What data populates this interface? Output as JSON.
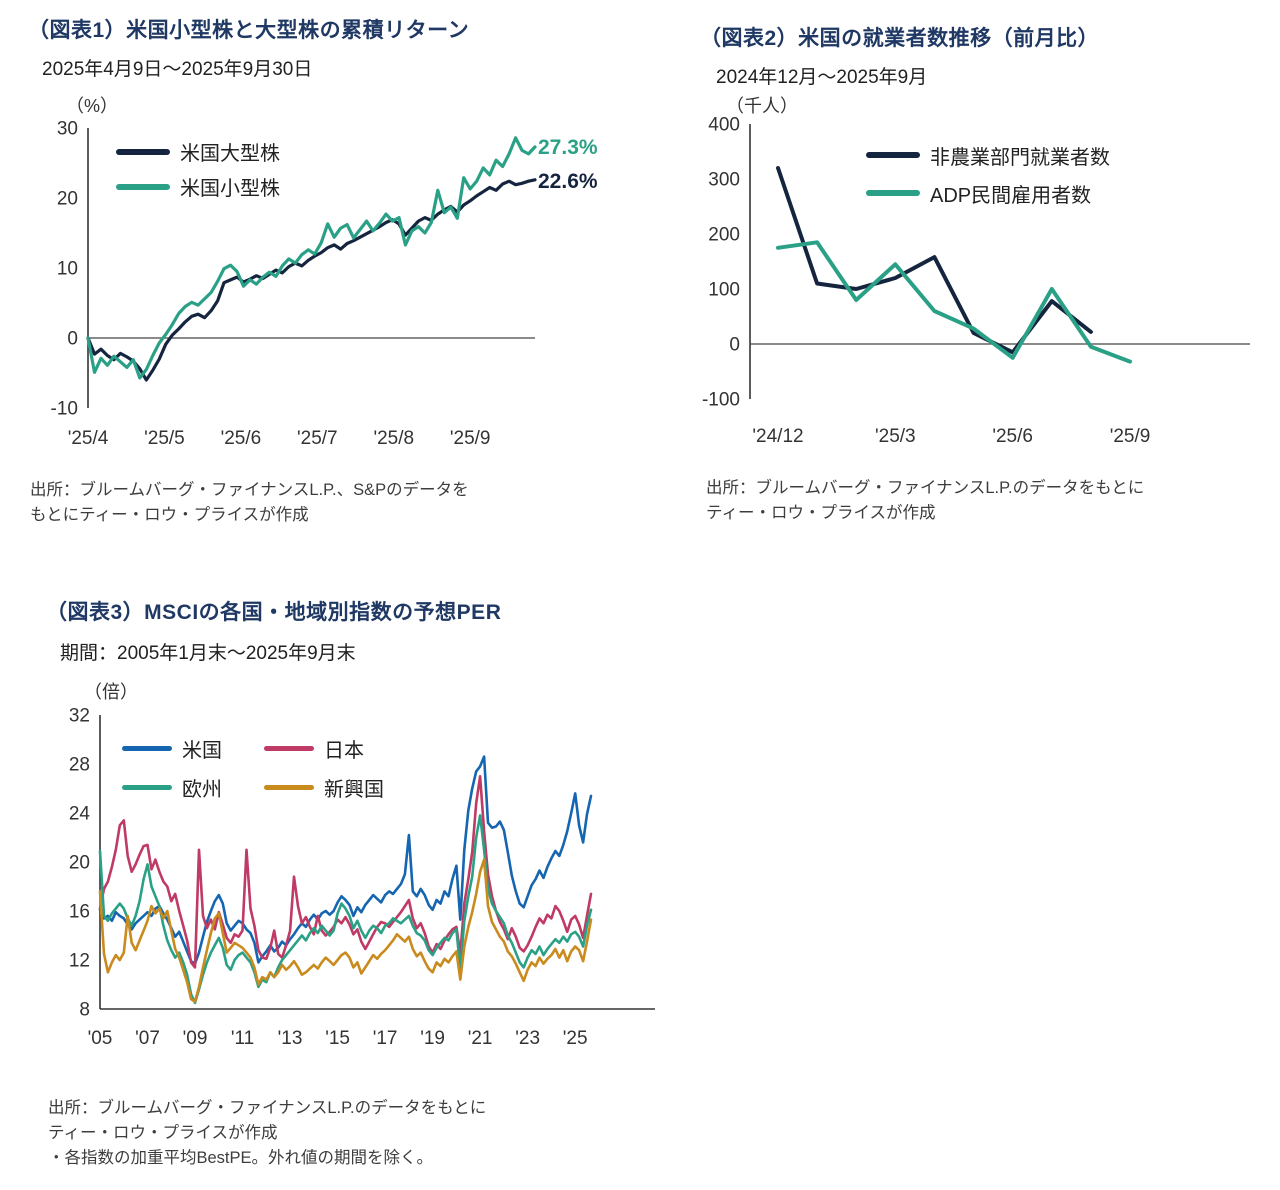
{
  "chart_data": [
    {
      "type": "line",
      "title": "（図表1）米国小型株と大型株の累積リターン",
      "subtitle": "2025年4月9日～2025年9月30日",
      "unit": "（%）",
      "ylabel": "%",
      "ylim": [
        -10,
        30
      ],
      "yticks": [
        30,
        20,
        10,
        0,
        -10
      ],
      "xticks": [
        "'25/4",
        "'25/5",
        "'25/6",
        "'25/7",
        "'25/8",
        "'25/9"
      ],
      "xtick_pos": [
        0,
        0.171,
        0.342,
        0.513,
        0.684,
        0.855
      ],
      "xspan": 69,
      "zero_line": true,
      "bottom_axis": false,
      "grid": false,
      "legend_position": "top-left-inside",
      "series": [
        {
          "name": "米国大型株",
          "color": "#16253f",
          "end_label": "22.6%",
          "values": [
            0,
            -2.3,
            -1.6,
            -2.5,
            -3.1,
            -2.2,
            -2.7,
            -3.3,
            -4.4,
            -6.0,
            -4.6,
            -3.0,
            -0.9,
            0.4,
            1.3,
            2.3,
            3.1,
            3.4,
            2.9,
            3.9,
            5.3,
            7.9,
            8.3,
            8.7,
            8.0,
            8.4,
            8.9,
            8.5,
            9.1,
            9.7,
            9.3,
            10.2,
            10.7,
            10.3,
            11.1,
            11.7,
            12.2,
            12.9,
            13.3,
            12.7,
            13.5,
            13.9,
            14.4,
            14.9,
            15.4,
            15.9,
            16.5,
            16.9,
            16.3,
            14.7,
            15.7,
            16.7,
            17.2,
            16.8,
            17.7,
            18.3,
            18.8,
            18.0,
            19.0,
            19.6,
            20.3,
            20.9,
            21.5,
            21.1,
            22.0,
            22.4,
            21.9,
            22.1,
            22.4,
            22.6
          ]
        },
        {
          "name": "米国小型株",
          "color": "#2aa186",
          "end_label": "27.3%",
          "values": [
            0,
            -4.9,
            -2.9,
            -3.9,
            -2.6,
            -3.4,
            -4.2,
            -3.1,
            -5.7,
            -4.5,
            -2.5,
            -0.7,
            0.5,
            1.9,
            3.5,
            4.5,
            5.1,
            4.7,
            5.6,
            6.5,
            8.1,
            9.9,
            10.4,
            9.5,
            7.4,
            8.3,
            7.7,
            8.7,
            9.4,
            8.8,
            10.3,
            11.3,
            10.7,
            11.9,
            12.6,
            12.0,
            13.6,
            16.3,
            14.4,
            15.7,
            16.2,
            14.3,
            15.5,
            16.7,
            15.3,
            16.4,
            17.7,
            16.7,
            17.2,
            13.3,
            15.3,
            15.9,
            15.0,
            16.5,
            21.1,
            17.9,
            18.7,
            17.1,
            22.9,
            21.3,
            22.4,
            24.3,
            23.3,
            25.4,
            24.5,
            26.3,
            28.6,
            26.8,
            26.3,
            27.3
          ]
        }
      ],
      "source": [
        "出所：ブルームバーグ・ファイナンスL.P.、S&Pのデータを",
        "もとにティー・ロウ・プライスが作成"
      ]
    },
    {
      "type": "line",
      "title": "（図表2）米国の就業者数推移（前月比）",
      "subtitle": "2024年12月～2025年9月",
      "unit": "（千人）",
      "ylabel": "千人",
      "ylim": [
        -100,
        400
      ],
      "yticks": [
        400,
        300,
        200,
        100,
        0,
        -100
      ],
      "xticks": [
        "'24/12",
        "'25/3",
        "'25/6",
        "'25/9"
      ],
      "xtick_pos": [
        0,
        0.3333,
        0.6667,
        1.0
      ],
      "xspan": 9,
      "zero_line": true,
      "bottom_axis": false,
      "grid": false,
      "legend_position": "top-right-inside",
      "series": [
        {
          "name": "非農業部門就業者数",
          "color": "#16253f",
          "x": [
            0,
            1,
            2,
            3,
            4,
            5,
            6,
            7,
            8
          ],
          "values": [
            320,
            110,
            100,
            120,
            158,
            20,
            -15,
            78,
            22
          ]
        },
        {
          "name": "ADP民間雇用者数",
          "color": "#2aa186",
          "x": [
            0,
            1,
            2,
            3,
            4,
            5,
            6,
            7,
            8,
            9
          ],
          "values": [
            175,
            185,
            80,
            145,
            60,
            28,
            -25,
            100,
            -5,
            -32
          ]
        }
      ],
      "source": [
        "出所：ブルームバーグ・ファイナンスL.P.のデータをもとに",
        "ティー・ロウ・プライスが作成"
      ]
    },
    {
      "type": "line",
      "title": "（図表3）MSCIの各国・地域別指数の予想PER",
      "subtitle": "期間：2005年1月末～2025年9月末",
      "unit": "（倍）",
      "ylabel": "倍",
      "ylim": [
        8,
        32
      ],
      "yticks": [
        32,
        28,
        24,
        20,
        16,
        12,
        8
      ],
      "xticks": [
        "'05",
        "'07",
        "'09",
        "'11",
        "'13",
        "'15",
        "'17",
        "'19",
        "'21",
        "'23",
        "'25"
      ],
      "xtick_pos": [
        0,
        0.0968,
        0.1935,
        0.2903,
        0.3871,
        0.4839,
        0.5806,
        0.6774,
        0.7742,
        0.871,
        0.9677
      ],
      "xspan": 124,
      "zero_line": false,
      "bottom_axis": true,
      "grid": false,
      "legend_position": "top-left-inside",
      "x_unit": "year, 2005 Jan to 2025 Sep, bimonthly points",
      "series": [
        {
          "name": "米国",
          "color": "#1565b0",
          "values": [
            16.1,
            15.4,
            15.6,
            15.2,
            15.9,
            15.6,
            15.4,
            14.9,
            14.5,
            15.0,
            15.3,
            15.6,
            15.9,
            15.6,
            16.2,
            16.4,
            15.8,
            15.3,
            14.6,
            13.9,
            14.3,
            13.5,
            12.7,
            11.9,
            11.7,
            12.6,
            13.9,
            15.1,
            16.0,
            16.8,
            17.3,
            16.6,
            15.0,
            14.4,
            14.8,
            15.2,
            15.0,
            14.5,
            14.2,
            13.4,
            11.8,
            12.3,
            12.7,
            13.2,
            12.7,
            13.0,
            13.5,
            13.2,
            13.7,
            14.1,
            14.6,
            15.0,
            14.7,
            15.3,
            15.7,
            15.3,
            15.8,
            16.0,
            15.7,
            16.0,
            16.7,
            17.2,
            16.9,
            16.5,
            15.6,
            16.3,
            15.9,
            16.5,
            16.9,
            17.3,
            17.0,
            16.7,
            17.3,
            17.6,
            17.4,
            17.8,
            18.2,
            19.0,
            22.2,
            17.6,
            17.2,
            17.8,
            17.3,
            16.5,
            16.1,
            16.9,
            16.6,
            17.6,
            17.2,
            18.6,
            19.7,
            15.3,
            21.0,
            24.2,
            26.0,
            27.4,
            27.8,
            28.6,
            23.2,
            22.8,
            22.9,
            23.3,
            22.6,
            20.8,
            18.9,
            17.6,
            16.6,
            16.3,
            17.2,
            18.1,
            18.6,
            19.3,
            18.7,
            19.6,
            20.3,
            20.9,
            20.5,
            21.4,
            22.5,
            24.0,
            25.6,
            23.0,
            21.6,
            23.9,
            25.4
          ]
        },
        {
          "name": "日本",
          "color": "#bf3a64",
          "values": [
            16.2,
            17.8,
            18.4,
            19.6,
            21.0,
            23.0,
            23.4,
            20.5,
            19.2,
            19.8,
            20.6,
            21.3,
            21.4,
            19.4,
            20.2,
            19.2,
            18.4,
            18.0,
            16.8,
            17.4,
            16.0,
            14.8,
            13.6,
            11.8,
            11.4,
            21.0,
            15.6,
            14.6,
            15.3,
            14.5,
            15.9,
            14.9,
            13.8,
            13.4,
            14.1,
            13.9,
            14.4,
            21.0,
            16.2,
            14.8,
            12.8,
            12.2,
            12.1,
            13.0,
            14.4,
            12.5,
            12.2,
            13.2,
            14.4,
            18.8,
            16.4,
            15.0,
            15.5,
            14.7,
            14.1,
            15.6,
            14.4,
            14.0,
            14.3,
            14.7,
            15.3,
            15.0,
            15.5,
            14.9,
            14.1,
            14.5,
            13.5,
            12.9,
            13.5,
            14.1,
            14.7,
            15.1,
            15.0,
            14.7,
            15.1,
            15.5,
            15.9,
            16.4,
            16.9,
            15.4,
            14.6,
            15.0,
            14.2,
            13.1,
            12.6,
            13.3,
            12.9,
            13.6,
            14.1,
            14.5,
            14.7,
            12.5,
            16.6,
            18.6,
            20.8,
            24.8,
            27.0,
            22.5,
            19.0,
            17.2,
            16.0,
            15.1,
            14.5,
            13.7,
            14.6,
            13.9,
            13.0,
            12.7,
            13.2,
            13.9,
            14.7,
            15.4,
            15.0,
            15.7,
            15.4,
            16.4,
            16.0,
            15.2,
            14.3,
            15.3,
            15.6,
            14.9,
            13.8,
            15.6,
            17.4
          ]
        },
        {
          "name": "欧州",
          "color": "#2aa186",
          "values": [
            20.9,
            15.6,
            15.2,
            15.8,
            16.2,
            16.6,
            16.2,
            15.4,
            14.8,
            15.6,
            16.8,
            18.6,
            19.8,
            18.0,
            17.2,
            16.4,
            14.8,
            13.6,
            12.8,
            12.2,
            12.6,
            11.8,
            10.8,
            9.2,
            8.5,
            9.6,
            10.8,
            11.8,
            12.6,
            13.2,
            13.8,
            13.0,
            11.6,
            11.2,
            12.0,
            12.4,
            12.6,
            12.2,
            11.8,
            11.0,
            9.8,
            10.4,
            10.2,
            11.0,
            10.6,
            11.4,
            12.0,
            12.4,
            12.8,
            13.2,
            13.6,
            14.0,
            13.6,
            14.2,
            14.6,
            14.2,
            14.8,
            14.4,
            14.0,
            14.4,
            15.8,
            16.6,
            16.2,
            15.6,
            14.6,
            15.2,
            14.4,
            13.8,
            14.4,
            14.8,
            14.6,
            14.2,
            14.8,
            15.0,
            15.4,
            15.2,
            15.0,
            15.3,
            15.6,
            14.8,
            14.2,
            14.0,
            13.6,
            12.8,
            12.4,
            13.0,
            13.4,
            13.8,
            13.6,
            14.2,
            14.5,
            11.2,
            15.2,
            17.2,
            18.8,
            22.0,
            23.8,
            21.0,
            17.8,
            16.6,
            16.0,
            15.5,
            15.0,
            14.0,
            13.4,
            12.6,
            11.8,
            11.4,
            12.2,
            12.8,
            12.5,
            13.1,
            12.4,
            12.9,
            13.3,
            13.7,
            13.4,
            13.9,
            13.5,
            14.1,
            14.3,
            13.9,
            13.1,
            14.8,
            16.1
          ]
        },
        {
          "name": "新興国",
          "color": "#c98a1e",
          "values": [
            17.6,
            12.5,
            11.0,
            11.8,
            12.4,
            12.0,
            12.6,
            15.6,
            13.4,
            12.8,
            13.6,
            14.4,
            15.2,
            16.4,
            15.8,
            16.2,
            15.4,
            16.0,
            14.4,
            12.9,
            12.2,
            11.2,
            10.2,
            8.8,
            8.6,
            9.8,
            11.4,
            12.8,
            14.2,
            15.4,
            15.8,
            14.2,
            12.6,
            13.0,
            13.4,
            13.2,
            13.0,
            12.6,
            12.2,
            11.4,
            10.0,
            10.6,
            10.4,
            11.0,
            10.6,
            11.0,
            11.6,
            11.2,
            11.5,
            11.9,
            11.4,
            10.8,
            11.0,
            11.3,
            11.6,
            11.3,
            11.8,
            12.2,
            11.9,
            11.6,
            12.0,
            12.4,
            12.6,
            12.2,
            11.4,
            11.8,
            10.9,
            11.4,
            11.9,
            12.4,
            12.1,
            12.5,
            12.8,
            13.2,
            13.6,
            14.1,
            13.8,
            13.5,
            13.9,
            12.9,
            12.3,
            12.6,
            11.9,
            11.3,
            11.0,
            11.8,
            11.5,
            12.1,
            11.8,
            12.3,
            12.7,
            10.4,
            13.1,
            14.7,
            15.9,
            17.4,
            19.2,
            20.2,
            16.4,
            15.1,
            14.5,
            13.9,
            13.5,
            12.7,
            12.3,
            11.7,
            11.0,
            10.3,
            11.2,
            11.8,
            11.5,
            12.2,
            11.7,
            12.1,
            12.4,
            12.9,
            12.2,
            12.8,
            11.9,
            12.7,
            13.1,
            12.8,
            11.9,
            13.5,
            15.3
          ]
        }
      ],
      "source": [
        "出所：ブルームバーグ・ファイナンスL.P.のデータをもとに",
        "ティー・ロウ・プライスが作成",
        "・各指数の加重平均BestPE。外れ値の期間を除く。"
      ]
    }
  ]
}
